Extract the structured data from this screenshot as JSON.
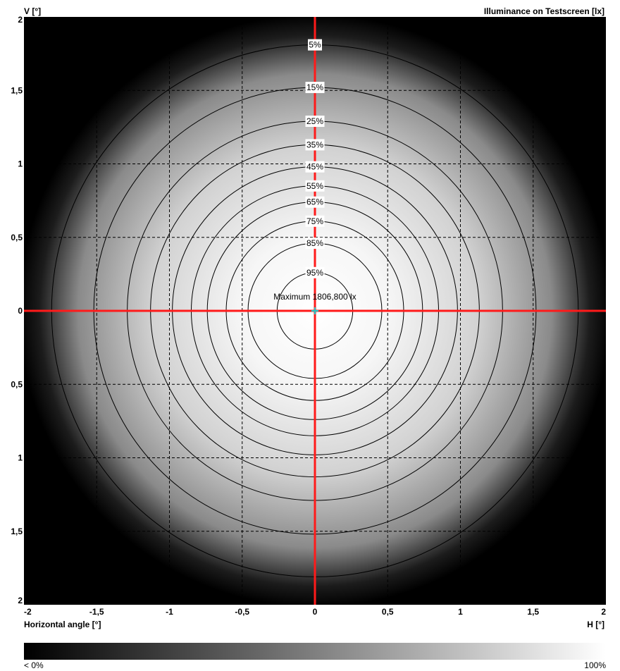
{
  "chart_data": {
    "type": "heatmap",
    "title": "Illuminance on Testscreen [lx]",
    "xlabel": "Horizontal angle [°]",
    "ylabel": "V [°]",
    "x_axis_end_label": "H [°]",
    "xlim": [
      -2,
      2
    ],
    "ylim": [
      -2,
      2
    ],
    "x_tick_labels": [
      "-2",
      "-1,5",
      "-1",
      "-0,5",
      "0",
      "0,5",
      "1",
      "1,5",
      "2"
    ],
    "y_tick_labels": [
      "2",
      "1,5",
      "1",
      "0,5",
      "0",
      "0,5",
      "1",
      "1,5",
      "2"
    ],
    "grid": true,
    "maximum_label": "Maximum 1806,800 lx",
    "maximum_point": [
      0,
      0
    ],
    "colors": {
      "crosshair": "#ff1a1a",
      "contour": "#000000",
      "max_marker": "#22c4c4"
    },
    "contours": [
      {
        "label": "5%",
        "level": 5,
        "radius": 1.81
      },
      {
        "label": "15%",
        "level": 15,
        "radius": 1.52
      },
      {
        "label": "25%",
        "level": 25,
        "radius": 1.29
      },
      {
        "label": "35%",
        "level": 35,
        "radius": 1.13
      },
      {
        "label": "45%",
        "level": 45,
        "radius": 0.98
      },
      {
        "label": "55%",
        "level": 55,
        "radius": 0.85
      },
      {
        "label": "65%",
        "level": 65,
        "radius": 0.74
      },
      {
        "label": "75%",
        "level": 75,
        "radius": 0.61
      },
      {
        "label": "85%",
        "level": 85,
        "radius": 0.46
      },
      {
        "label": "95%",
        "level": 95,
        "radius": 0.26
      }
    ],
    "colorbar": {
      "min_label": "< 0%",
      "max_label": "100%"
    }
  }
}
